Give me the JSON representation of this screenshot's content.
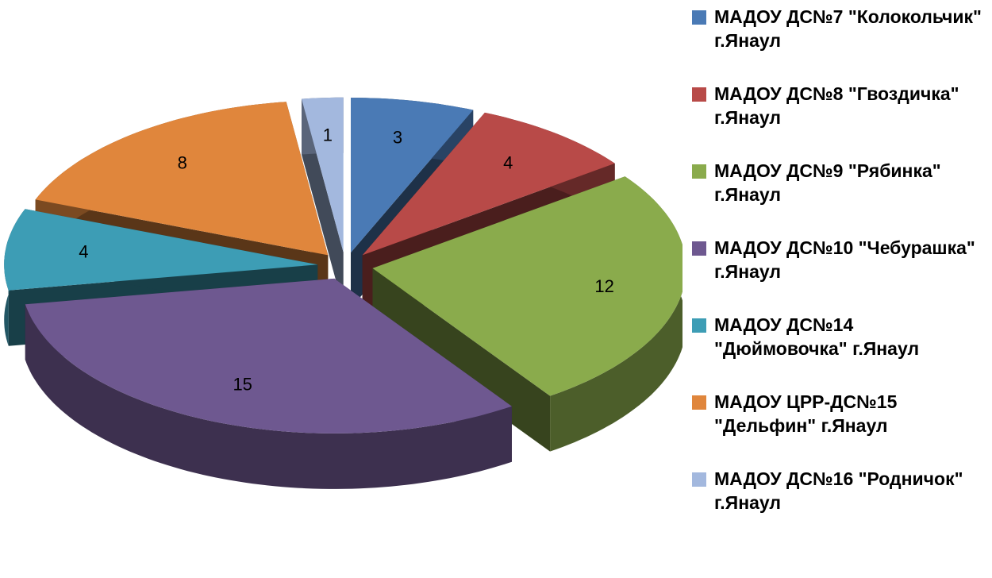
{
  "chart_data": {
    "type": "pie",
    "categories": [
      "МАДОУ ДС№7 \"Колокольчик\" г.Янаул",
      "МАДОУ ДС№8 \"Гвоздичка\" г.Янаул",
      "МАДОУ ДС№9 \"Рябинка\" г.Янаул",
      "МАДОУ ДС№10 \"Чебурашка\" г.Янаул",
      "МАДОУ ДС№14 \"Дюймовочка\" г.Янаул",
      "МАДОУ ЦРР-ДС№15 \"Дельфин\" г.Янаул",
      "МАДОУ ДС№16 \"Родничок\" г.Янаул"
    ],
    "values": [
      3,
      4,
      12,
      15,
      4,
      8,
      1
    ],
    "colors": [
      "#4a7ab5",
      "#b84a48",
      "#8aab4c",
      "#6e5890",
      "#3d9db5",
      "#e0863c",
      "#a3b8de"
    ],
    "legend": "right"
  }
}
